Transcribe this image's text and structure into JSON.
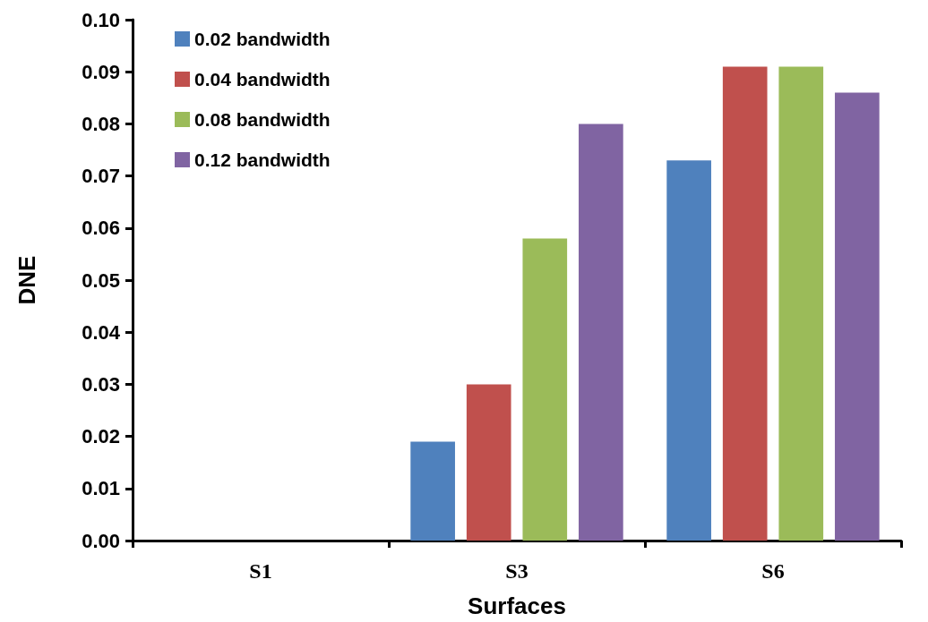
{
  "chart_data": {
    "type": "bar",
    "xlabel": "Surfaces",
    "ylabel": "DNE",
    "categories": [
      "S1",
      "S3",
      "S6"
    ],
    "series": [
      {
        "name": "0.02 bandwidth",
        "color": "#4f81bd",
        "values": [
          0,
          0.019,
          0.073
        ]
      },
      {
        "name": "0.04 bandwidth",
        "color": "#c0504d",
        "values": [
          0,
          0.03,
          0.091
        ]
      },
      {
        "name": "0.08 bandwidth",
        "color": "#9bbb59",
        "values": [
          0,
          0.058,
          0.091
        ]
      },
      {
        "name": "0.12 bandwidth",
        "color": "#8064a2",
        "values": [
          0,
          0.08,
          0.086
        ]
      }
    ],
    "ylim": [
      0,
      0.1
    ],
    "yticks": [
      {
        "value": 0,
        "label": "0.00"
      },
      0.01,
      0.02,
      0.03,
      0.04,
      0.05,
      0.06,
      0.07,
      0.08,
      0.09,
      {
        "value": 0.1,
        "label": "0.10"
      }
    ],
    "grid": false,
    "legend": "top left"
  }
}
